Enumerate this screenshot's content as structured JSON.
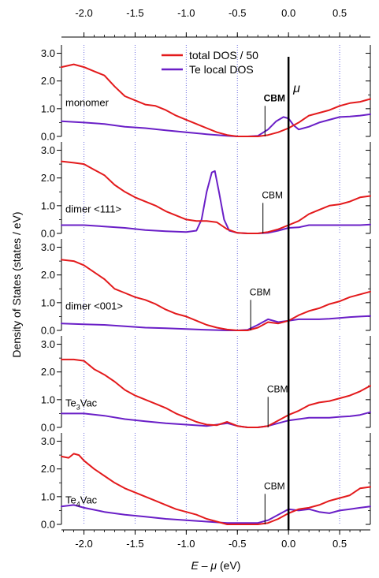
{
  "chart_data": {
    "type": "line",
    "xlabel_italic": "E – μ",
    "xlabel_unit": " (eV)",
    "ylabel": "Density of States (states / eV)",
    "xlim": [
      -2.22,
      0.8
    ],
    "ylim": [
      0,
      3.3
    ],
    "x_ticks": [
      -2.0,
      -1.5,
      -1.0,
      -0.5,
      0.0,
      0.5
    ],
    "x_tick_labels": [
      "-2.0",
      "-1.5",
      "-1.0",
      "-0.5",
      "0.0",
      "0.5"
    ],
    "y_ticks": [
      0,
      1,
      2,
      3
    ],
    "y_tick_labels": [
      "0.0",
      "1.0",
      "2.0",
      "3.0"
    ],
    "mu_x": 0.0,
    "mu_label": "μ",
    "cbm_label": "CBM",
    "legend": {
      "placement": "top-center",
      "entries": [
        {
          "label": "total DOS / 50",
          "color": "#e31a1c"
        },
        {
          "label": "Te local DOS",
          "color": "#6a1fc7"
        }
      ]
    },
    "panels": [
      {
        "label": "monomer",
        "label_html": "monomer",
        "cbm": -0.23,
        "cbm_bold": true,
        "series": [
          {
            "name": "total DOS / 50",
            "color": "#e31a1c",
            "x": [
              -2.22,
              -2.1,
              -2.0,
              -1.9,
              -1.8,
              -1.7,
              -1.6,
              -1.5,
              -1.4,
              -1.3,
              -1.2,
              -1.1,
              -1.0,
              -0.9,
              -0.8,
              -0.7,
              -0.6,
              -0.5,
              -0.4,
              -0.3,
              -0.2,
              -0.1,
              0.0,
              0.1,
              0.2,
              0.3,
              0.4,
              0.5,
              0.6,
              0.7,
              0.8
            ],
            "y": [
              2.5,
              2.6,
              2.5,
              2.35,
              2.2,
              1.8,
              1.45,
              1.3,
              1.15,
              1.1,
              0.95,
              0.75,
              0.6,
              0.45,
              0.3,
              0.15,
              0.05,
              0.0,
              0.0,
              0.0,
              0.05,
              0.15,
              0.3,
              0.5,
              0.75,
              0.85,
              0.95,
              1.1,
              1.2,
              1.25,
              1.35
            ]
          },
          {
            "name": "Te local DOS",
            "color": "#6a1fc7",
            "x": [
              -2.22,
              -2.0,
              -1.8,
              -1.6,
              -1.4,
              -1.2,
              -1.0,
              -0.8,
              -0.6,
              -0.5,
              -0.4,
              -0.3,
              -0.2,
              -0.12,
              -0.05,
              0.0,
              0.05,
              0.1,
              0.2,
              0.3,
              0.4,
              0.5,
              0.6,
              0.7,
              0.8
            ],
            "y": [
              0.55,
              0.5,
              0.45,
              0.35,
              0.3,
              0.22,
              0.15,
              0.08,
              0.02,
              0.0,
              0.0,
              0.02,
              0.25,
              0.55,
              0.7,
              0.65,
              0.4,
              0.25,
              0.35,
              0.5,
              0.6,
              0.7,
              0.72,
              0.75,
              0.8
            ]
          }
        ]
      },
      {
        "label": "dimer <111>",
        "label_html": "dimer <111>",
        "cbm": -0.25,
        "cbm_bold": false,
        "series": [
          {
            "name": "total DOS / 50",
            "color": "#e31a1c",
            "x": [
              -2.22,
              -2.1,
              -2.0,
              -1.9,
              -1.8,
              -1.7,
              -1.6,
              -1.5,
              -1.4,
              -1.3,
              -1.2,
              -1.1,
              -1.0,
              -0.9,
              -0.8,
              -0.7,
              -0.6,
              -0.5,
              -0.4,
              -0.3,
              -0.2,
              -0.1,
              0.0,
              0.1,
              0.2,
              0.3,
              0.4,
              0.5,
              0.6,
              0.7,
              0.8
            ],
            "y": [
              2.6,
              2.55,
              2.5,
              2.3,
              2.1,
              1.75,
              1.5,
              1.3,
              1.15,
              1.0,
              0.8,
              0.65,
              0.5,
              0.45,
              0.45,
              0.4,
              0.15,
              0.02,
              0.0,
              0.0,
              0.05,
              0.15,
              0.3,
              0.45,
              0.7,
              0.85,
              1.0,
              1.05,
              1.15,
              1.3,
              1.35
            ]
          },
          {
            "name": "Te local DOS",
            "color": "#6a1fc7",
            "x": [
              -2.22,
              -2.0,
              -1.8,
              -1.6,
              -1.4,
              -1.2,
              -1.0,
              -0.9,
              -0.85,
              -0.8,
              -0.75,
              -0.72,
              -0.68,
              -0.63,
              -0.58,
              -0.5,
              -0.4,
              -0.3,
              -0.2,
              -0.1,
              0.0,
              0.1,
              0.2,
              0.3,
              0.4,
              0.5,
              0.6,
              0.7,
              0.8
            ],
            "y": [
              0.3,
              0.3,
              0.25,
              0.2,
              0.12,
              0.08,
              0.05,
              0.1,
              0.5,
              1.5,
              2.2,
              2.25,
              1.5,
              0.5,
              0.1,
              0.02,
              0.0,
              0.0,
              0.02,
              0.1,
              0.2,
              0.22,
              0.3,
              0.3,
              0.3,
              0.3,
              0.3,
              0.3,
              0.32
            ]
          }
        ]
      },
      {
        "label": "dimer <001>",
        "label_html": "dimer <001>",
        "cbm": -0.37,
        "cbm_bold": false,
        "series": [
          {
            "name": "total DOS / 50",
            "color": "#e31a1c",
            "x": [
              -2.22,
              -2.1,
              -2.0,
              -1.9,
              -1.8,
              -1.7,
              -1.6,
              -1.5,
              -1.4,
              -1.3,
              -1.2,
              -1.1,
              -1.0,
              -0.9,
              -0.8,
              -0.7,
              -0.6,
              -0.5,
              -0.4,
              -0.3,
              -0.2,
              -0.1,
              0.0,
              0.1,
              0.2,
              0.3,
              0.4,
              0.5,
              0.6,
              0.7,
              0.8
            ],
            "y": [
              2.55,
              2.5,
              2.35,
              2.1,
              1.85,
              1.5,
              1.35,
              1.2,
              1.1,
              0.95,
              0.75,
              0.6,
              0.5,
              0.35,
              0.2,
              0.1,
              0.03,
              0.0,
              0.0,
              0.1,
              0.3,
              0.25,
              0.35,
              0.55,
              0.7,
              0.8,
              0.95,
              1.05,
              1.2,
              1.3,
              1.4
            ]
          },
          {
            "name": "Te local DOS",
            "color": "#6a1fc7",
            "x": [
              -2.22,
              -2.0,
              -1.8,
              -1.6,
              -1.4,
              -1.2,
              -1.0,
              -0.8,
              -0.6,
              -0.5,
              -0.4,
              -0.3,
              -0.2,
              -0.1,
              0.0,
              0.1,
              0.2,
              0.3,
              0.4,
              0.5,
              0.6,
              0.7,
              0.8
            ],
            "y": [
              0.25,
              0.22,
              0.2,
              0.15,
              0.1,
              0.08,
              0.05,
              0.02,
              0.0,
              0.0,
              0.02,
              0.2,
              0.4,
              0.3,
              0.35,
              0.4,
              0.4,
              0.4,
              0.42,
              0.45,
              0.48,
              0.5,
              0.52
            ]
          }
        ]
      },
      {
        "label": "Te3Vac",
        "label_pre": "Te",
        "label_sub": "3",
        "label_post": "Vac",
        "cbm": -0.2,
        "cbm_bold": false,
        "series": [
          {
            "name": "total DOS / 50",
            "color": "#e31a1c",
            "x": [
              -2.22,
              -2.1,
              -2.0,
              -1.9,
              -1.8,
              -1.7,
              -1.6,
              -1.5,
              -1.4,
              -1.3,
              -1.2,
              -1.1,
              -1.0,
              -0.9,
              -0.8,
              -0.7,
              -0.6,
              -0.5,
              -0.4,
              -0.3,
              -0.2,
              -0.1,
              0.0,
              0.1,
              0.2,
              0.3,
              0.4,
              0.5,
              0.6,
              0.7,
              0.8
            ],
            "y": [
              2.45,
              2.45,
              2.4,
              2.1,
              1.9,
              1.65,
              1.35,
              1.15,
              1.0,
              0.85,
              0.7,
              0.5,
              0.35,
              0.2,
              0.1,
              0.08,
              0.2,
              0.05,
              0.0,
              0.0,
              0.05,
              0.25,
              0.45,
              0.6,
              0.8,
              0.9,
              0.95,
              1.05,
              1.15,
              1.3,
              1.5
            ]
          },
          {
            "name": "Te local DOS",
            "color": "#6a1fc7",
            "x": [
              -2.22,
              -2.0,
              -1.8,
              -1.6,
              -1.4,
              -1.2,
              -1.0,
              -0.8,
              -0.7,
              -0.6,
              -0.5,
              -0.4,
              -0.3,
              -0.2,
              -0.1,
              0.0,
              0.1,
              0.2,
              0.3,
              0.4,
              0.5,
              0.6,
              0.7,
              0.8
            ],
            "y": [
              0.5,
              0.5,
              0.42,
              0.3,
              0.22,
              0.15,
              0.1,
              0.05,
              0.1,
              0.15,
              0.05,
              0.0,
              0.0,
              0.05,
              0.15,
              0.25,
              0.3,
              0.35,
              0.35,
              0.35,
              0.38,
              0.4,
              0.45,
              0.55
            ]
          }
        ]
      },
      {
        "label": "Te4Vac",
        "label_pre": "Te",
        "label_sub": "4",
        "label_post": "Vac",
        "cbm": -0.23,
        "cbm_bold": false,
        "series": [
          {
            "name": "total DOS / 50",
            "color": "#e31a1c",
            "x": [
              -2.22,
              -2.15,
              -2.1,
              -2.05,
              -2.0,
              -1.9,
              -1.8,
              -1.7,
              -1.6,
              -1.5,
              -1.4,
              -1.3,
              -1.2,
              -1.1,
              -1.0,
              -0.9,
              -0.8,
              -0.7,
              -0.6,
              -0.5,
              -0.4,
              -0.3,
              -0.2,
              -0.1,
              0.0,
              0.1,
              0.2,
              0.3,
              0.4,
              0.5,
              0.6,
              0.7,
              0.8
            ],
            "y": [
              2.45,
              2.4,
              2.55,
              2.5,
              2.3,
              2.0,
              1.75,
              1.5,
              1.3,
              1.15,
              1.0,
              0.85,
              0.7,
              0.55,
              0.45,
              0.35,
              0.2,
              0.1,
              0.0,
              0.0,
              0.0,
              0.0,
              0.05,
              0.2,
              0.4,
              0.55,
              0.6,
              0.7,
              0.85,
              0.95,
              1.05,
              1.3,
              1.35
            ]
          },
          {
            "name": "Te local DOS",
            "color": "#6a1fc7",
            "x": [
              -2.22,
              -2.1,
              -2.0,
              -1.8,
              -1.6,
              -1.4,
              -1.2,
              -1.0,
              -0.8,
              -0.6,
              -0.5,
              -0.4,
              -0.3,
              -0.2,
              -0.1,
              0.0,
              0.1,
              0.2,
              0.3,
              0.4,
              0.5,
              0.6,
              0.7,
              0.8
            ],
            "y": [
              0.65,
              0.7,
              0.6,
              0.45,
              0.35,
              0.28,
              0.2,
              0.15,
              0.1,
              0.05,
              0.05,
              0.05,
              0.05,
              0.15,
              0.35,
              0.55,
              0.5,
              0.55,
              0.45,
              0.4,
              0.5,
              0.55,
              0.6,
              0.65
            ]
          }
        ]
      }
    ]
  }
}
